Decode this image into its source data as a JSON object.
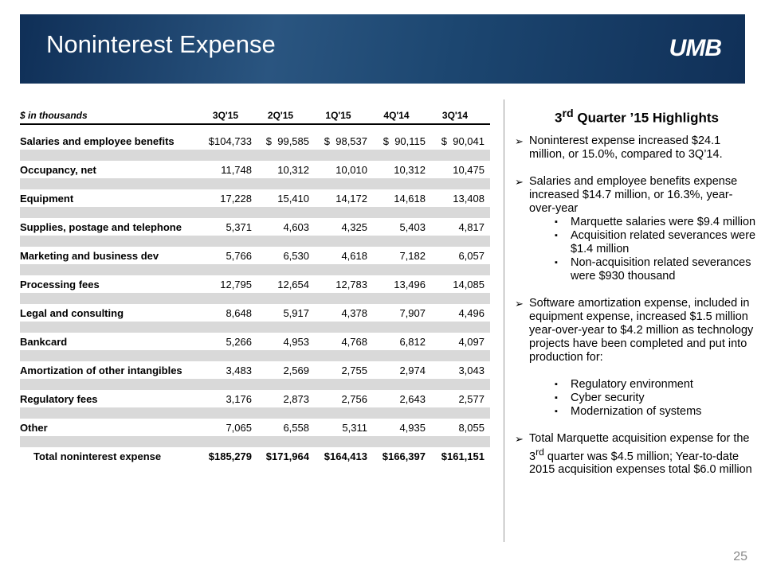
{
  "header": {
    "title": "Noninterest Expense",
    "logo": "UMB"
  },
  "table": {
    "columns": [
      "$ in thousands",
      "3Q'15",
      "2Q'15",
      "1Q'15",
      "4Q'14",
      "3Q'14"
    ],
    "rows": [
      [
        "Salaries and employee benefits",
        "$104,733",
        "$  99,585",
        "$  98,537",
        "$  90,115",
        "$  90,041"
      ],
      [
        "Occupancy, net",
        "11,748",
        "10,312",
        "10,010",
        "10,312",
        "10,475"
      ],
      [
        "Equipment",
        "17,228",
        "15,410",
        "14,172",
        "14,618",
        "13,408"
      ],
      [
        "Supplies, postage and telephone",
        "5,371",
        "4,603",
        "4,325",
        "5,403",
        "4,817"
      ],
      [
        "Marketing and business dev",
        "5,766",
        "6,530",
        "4,618",
        "7,182",
        "6,057"
      ],
      [
        "Processing fees",
        "12,795",
        "12,654",
        "12,783",
        "13,496",
        "14,085"
      ],
      [
        "Legal and consulting",
        "8,648",
        "5,917",
        "4,378",
        "7,907",
        "4,496"
      ],
      [
        "Bankcard",
        "5,266",
        "4,953",
        "4,768",
        "6,812",
        "4,097"
      ],
      [
        "Amortization of other intangibles",
        "3,483",
        "2,569",
        "2,755",
        "2,974",
        "3,043"
      ],
      [
        "Regulatory fees",
        "3,176",
        "2,873",
        "2,756",
        "2,643",
        "2,577"
      ],
      [
        "Other",
        "7,065",
        "6,558",
        "5,311",
        "4,935",
        "8,055"
      ]
    ],
    "total": [
      "Total noninterest expense",
      "$185,279",
      "$171,964",
      "$164,413",
      "$166,397",
      "$161,151"
    ]
  },
  "highlights": {
    "title": {
      "ordinal": "3",
      "suffix": "rd",
      "rest": " Quarter ’15 Highlights"
    },
    "bullets": [
      {
        "text": "Noninterest expense increased  $24.1 million, or 15.0%, compared to 3Q’14.",
        "subs": []
      },
      {
        "text": "Salaries and employee benefits expense increased $14.7 million, or 16.3%, year-over-year",
        "subs": [
          "Marquette salaries were $9.4 million",
          "Acquisition related severances were $1.4 million",
          "Non-acquisition related severances were $930 thousand"
        ]
      },
      {
        "text": "Software amortization expense, included in equipment expense, increased $1.5 million year-over-year to $4.2 million  as technology projects have been completed and put into production for:",
        "subs": [
          "Regulatory environment",
          "Cyber security",
          "Modernization of systems"
        ]
      }
    ],
    "last_bullet": {
      "lead": "Total Marquette acquisition expense for the ",
      "ordinal": "3",
      "suffix": "rd",
      "rest": " quarter was $4.5 million; Year-to-date 2015 acquisition expenses total $6.0 million"
    }
  },
  "page_number": "25"
}
